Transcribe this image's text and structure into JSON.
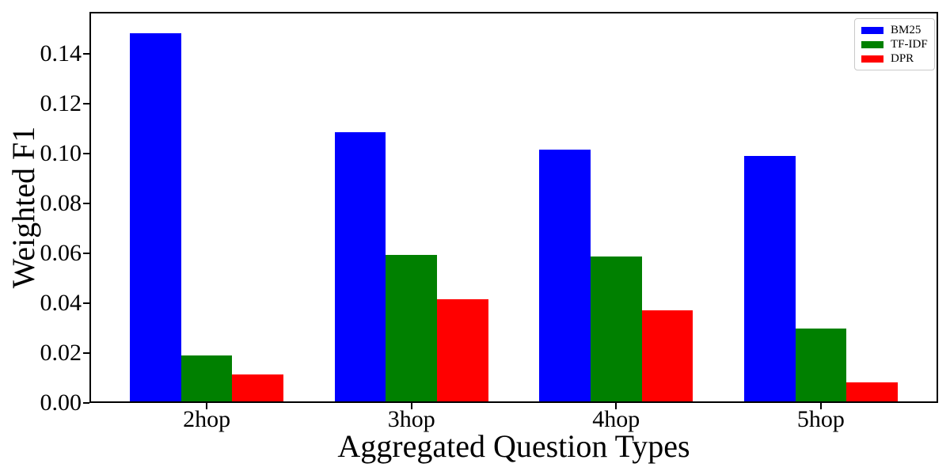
{
  "chart_data": {
    "type": "bar",
    "title": "",
    "xlabel": "Aggregated Question Types",
    "ylabel": "Weighted F1",
    "categories": [
      "2hop",
      "3hop",
      "4hop",
      "5hop"
    ],
    "series": [
      {
        "name": "BM25",
        "color": "#0000ff",
        "values": [
          0.149,
          0.109,
          0.102,
          0.0995
        ]
      },
      {
        "name": "TF-IDF",
        "color": "#008000",
        "values": [
          0.0185,
          0.0593,
          0.0585,
          0.0295
        ]
      },
      {
        "name": "DPR",
        "color": "#ff0000",
        "values": [
          0.011,
          0.0415,
          0.037,
          0.0078
        ]
      }
    ],
    "ylim": [
      0,
      0.157
    ],
    "yticks": [
      0.0,
      0.02,
      0.04,
      0.06,
      0.08,
      0.1,
      0.12,
      0.14
    ],
    "ytick_labels": [
      "0.00",
      "0.02",
      "0.04",
      "0.06",
      "0.08",
      "0.10",
      "0.12",
      "0.14"
    ],
    "bar_width_data": 0.25,
    "grid": false,
    "background": "#ffffff",
    "legend": {
      "position": "top-right",
      "entries": [
        "BM25",
        "TF-IDF",
        "DPR"
      ]
    }
  }
}
